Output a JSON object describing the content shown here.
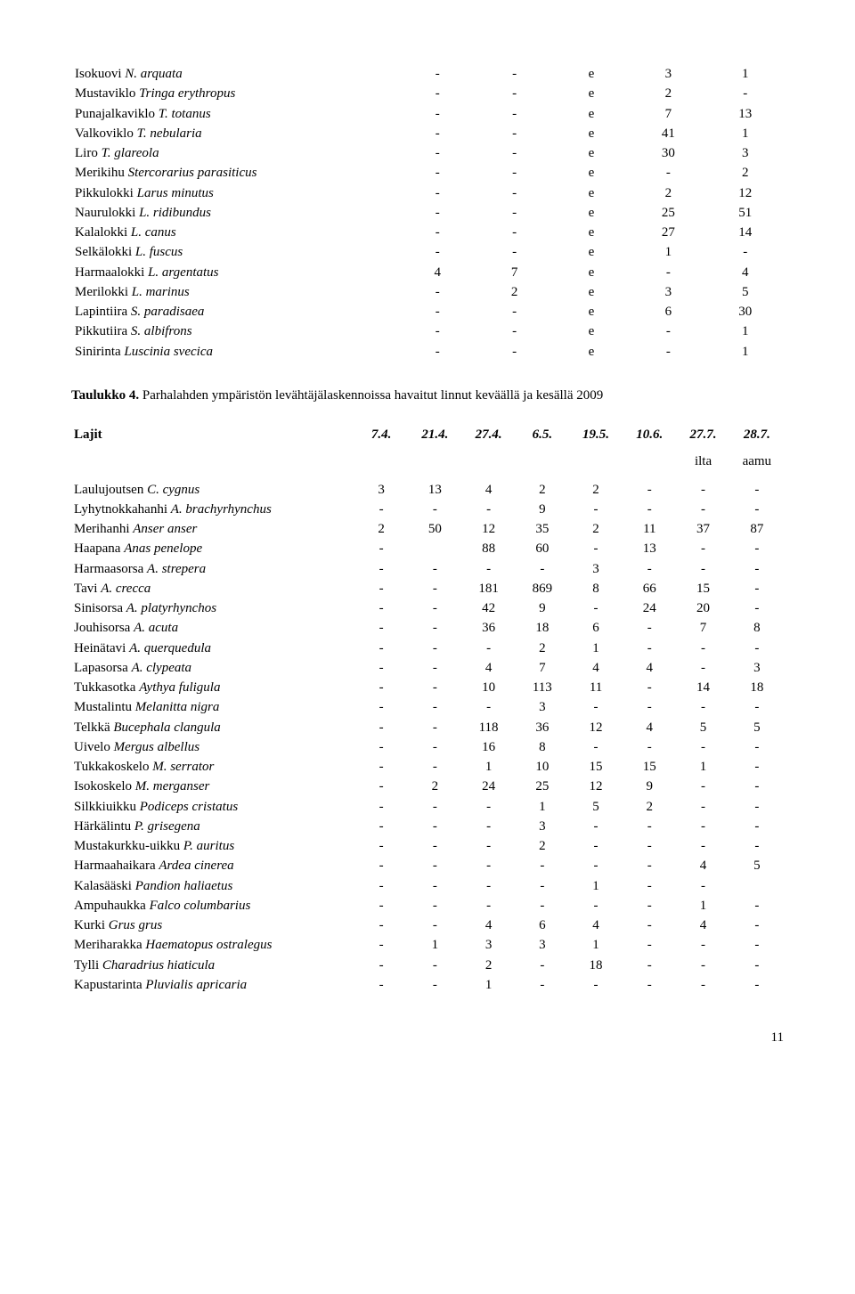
{
  "table1": {
    "rows": [
      {
        "name_plain": "Isokuovi ",
        "name_italic": "N. arquata",
        "v": [
          "-",
          "-",
          "e",
          "3",
          "1"
        ]
      },
      {
        "name_plain": "Mustaviklo ",
        "name_italic": "Tringa erythropus",
        "v": [
          "-",
          "-",
          "e",
          "2",
          "-"
        ]
      },
      {
        "name_plain": "Punajalkaviklo ",
        "name_italic": "T. totanus",
        "v": [
          "-",
          "-",
          "e",
          "7",
          "13"
        ]
      },
      {
        "name_plain": "Valkoviklo ",
        "name_italic": "T. nebularia",
        "v": [
          "-",
          "-",
          "e",
          "41",
          "1"
        ]
      },
      {
        "name_plain": "Liro ",
        "name_italic": "T. glareola",
        "v": [
          "-",
          "-",
          "e",
          "30",
          "3"
        ]
      },
      {
        "name_plain": "Merikihu ",
        "name_italic": "Stercorarius parasiticus",
        "v": [
          "-",
          "-",
          "e",
          "-",
          "2"
        ]
      },
      {
        "name_plain": "Pikkulokki ",
        "name_italic": "Larus minutus",
        "v": [
          "-",
          "-",
          "e",
          "2",
          "12"
        ]
      },
      {
        "name_plain": "Naurulokki ",
        "name_italic": "L. ridibundus",
        "v": [
          "-",
          "-",
          "e",
          "25",
          "51"
        ]
      },
      {
        "name_plain": "Kalalokki ",
        "name_italic": "L. canus",
        "v": [
          "-",
          "-",
          "e",
          "27",
          "14"
        ]
      },
      {
        "name_plain": "Selkälokki ",
        "name_italic": "L. fuscus",
        "v": [
          "-",
          "-",
          "e",
          "1",
          "-"
        ]
      },
      {
        "name_plain": "Harmaalokki ",
        "name_italic": "L. argentatus",
        "v": [
          "4",
          "7",
          "e",
          "-",
          "4"
        ]
      },
      {
        "name_plain": "Merilokki ",
        "name_italic": "L. marinus",
        "v": [
          "-",
          "2",
          "e",
          "3",
          "5"
        ]
      },
      {
        "name_plain": "Lapintiira ",
        "name_italic": "S. paradisaea",
        "v": [
          "-",
          "-",
          "e",
          "6",
          "30"
        ]
      },
      {
        "name_plain": "Pikkutiira ",
        "name_italic": "S. albifrons",
        "v": [
          "-",
          "-",
          "e",
          "-",
          "1"
        ]
      },
      {
        "name_plain": "Sinirinta ",
        "name_italic": "Luscinia svecica",
        "v": [
          "-",
          "-",
          "e",
          "-",
          "1"
        ]
      }
    ]
  },
  "heading4": {
    "bold": "Taulukko 4.",
    "rest": " Parhalahden ympäristön levähtäjälaskennoissa havaitut linnut keväällä ja kesällä 2009"
  },
  "table2": {
    "lajit_label": "Lajit",
    "dates": [
      "7.4.",
      "21.4.",
      "27.4.",
      "6.5.",
      "19.5.",
      "10.6.",
      "27.7.",
      "28.7."
    ],
    "sub": [
      "",
      "",
      "",
      "",
      "",
      "",
      "ilta",
      "aamu"
    ],
    "rows": [
      {
        "name_plain": "Laulujoutsen ",
        "name_italic": "C. cygnus",
        "v": [
          "3",
          "13",
          "4",
          "2",
          "2",
          "-",
          "-",
          "-"
        ]
      },
      {
        "name_plain": "Lyhytnokkahanhi ",
        "name_italic": "A. brachyrhynchus",
        "v": [
          "-",
          "-",
          "-",
          "9",
          "-",
          "-",
          "-",
          "-"
        ]
      },
      {
        "name_plain": "Merihanhi ",
        "name_italic": "Anser anser",
        "v": [
          "2",
          "50",
          "12",
          "35",
          "2",
          "11",
          "37",
          "87"
        ]
      },
      {
        "name_plain": "Haapana ",
        "name_italic": "Anas penelope",
        "v": [
          "-",
          "",
          "88",
          "60",
          "-",
          "13",
          "-",
          "-"
        ]
      },
      {
        "name_plain": "Harmaasorsa ",
        "name_italic": "A. strepera",
        "v": [
          "-",
          "-",
          "-",
          "-",
          "3",
          "-",
          "-",
          "-"
        ]
      },
      {
        "name_plain": "Tavi ",
        "name_italic": "A. crecca",
        "v": [
          "-",
          "-",
          "181",
          "869",
          "8",
          "66",
          "15",
          "-"
        ]
      },
      {
        "name_plain": "Sinisorsa ",
        "name_italic": "A. platyrhynchos",
        "v": [
          "-",
          "-",
          "42",
          "9",
          "-",
          "24",
          "20",
          "-"
        ]
      },
      {
        "name_plain": "Jouhisorsa ",
        "name_italic": "A. acuta",
        "v": [
          "-",
          "-",
          "36",
          "18",
          "6",
          "-",
          "7",
          "8"
        ]
      },
      {
        "name_plain": "Heinätavi ",
        "name_italic": "A. querquedula",
        "v": [
          "-",
          "-",
          "-",
          "2",
          "1",
          "-",
          "-",
          "-"
        ]
      },
      {
        "name_plain": "Lapasorsa ",
        "name_italic": "A. clypeata",
        "v": [
          "-",
          "-",
          "4",
          "7",
          "4",
          "4",
          "-",
          "3"
        ]
      },
      {
        "name_plain": "Tukkasotka ",
        "name_italic": "Aythya fuligula",
        "v": [
          "-",
          "-",
          "10",
          "113",
          "11",
          "-",
          "14",
          "18"
        ]
      },
      {
        "name_plain": "Mustalintu ",
        "name_italic": "Melanitta nigra",
        "v": [
          "-",
          "-",
          "-",
          "3",
          "-",
          "-",
          "-",
          "-"
        ]
      },
      {
        "name_plain": "Telkkä ",
        "name_italic": "Bucephala clangula",
        "v": [
          "-",
          "-",
          "118",
          "36",
          "12",
          "4",
          "5",
          "5"
        ]
      },
      {
        "name_plain": "Uivelo ",
        "name_italic": "Mergus albellus",
        "v": [
          "-",
          "-",
          "16",
          "8",
          "-",
          "-",
          "-",
          "-"
        ]
      },
      {
        "name_plain": "Tukkakoskelo ",
        "name_italic": "M. serrator",
        "v": [
          "-",
          "-",
          "1",
          "10",
          "15",
          "15",
          "1",
          "-"
        ]
      },
      {
        "name_plain": "Isokoskelo ",
        "name_italic": "M. merganser",
        "v": [
          "-",
          "2",
          "24",
          "25",
          "12",
          "9",
          "-",
          "-"
        ]
      },
      {
        "name_plain": "Silkkiuikku ",
        "name_italic": "Podiceps cristatus",
        "v": [
          "-",
          "-",
          "-",
          "1",
          "5",
          "2",
          "-",
          "-"
        ]
      },
      {
        "name_plain": "Härkälintu ",
        "name_italic": "P. grisegena",
        "v": [
          "-",
          "-",
          "-",
          "3",
          "-",
          "-",
          "-",
          "-"
        ]
      },
      {
        "name_plain": "Mustakurkku-uikku ",
        "name_italic": "P. auritus",
        "v": [
          "-",
          "-",
          "-",
          "2",
          "-",
          "-",
          "-",
          "-"
        ]
      },
      {
        "name_plain": "Harmaahaikara ",
        "name_italic": "Ardea cinerea",
        "v": [
          "-",
          "-",
          "-",
          "-",
          "-",
          "-",
          "4",
          "5"
        ]
      },
      {
        "name_plain": "Kalasääski ",
        "name_italic": "Pandion haliaetus",
        "v": [
          "-",
          "-",
          "-",
          "-",
          "1",
          "-",
          "-",
          ""
        ]
      },
      {
        "name_plain": "Ampuhaukka ",
        "name_italic": "Falco columbarius",
        "v": [
          "-",
          "-",
          "-",
          "-",
          "-",
          "-",
          "1",
          "-"
        ]
      },
      {
        "name_plain": "Kurki ",
        "name_italic": "Grus grus",
        "v": [
          "-",
          "-",
          "4",
          "6",
          "4",
          "-",
          "4",
          "-"
        ]
      },
      {
        "name_plain": "Meriharakka ",
        "name_italic": "Haematopus ostralegus",
        "v": [
          "-",
          "1",
          "3",
          "3",
          "1",
          "-",
          "-",
          "-"
        ]
      },
      {
        "name_plain": "Tylli ",
        "name_italic": "Charadrius hiaticula",
        "v": [
          "-",
          "-",
          "2",
          "-",
          "18",
          "-",
          "-",
          "-"
        ]
      },
      {
        "name_plain": "Kapustarinta ",
        "name_italic": "Pluvialis apricaria",
        "v": [
          "-",
          "-",
          "1",
          "-",
          "-",
          "-",
          "-",
          "-"
        ]
      }
    ]
  },
  "page_number": "11"
}
